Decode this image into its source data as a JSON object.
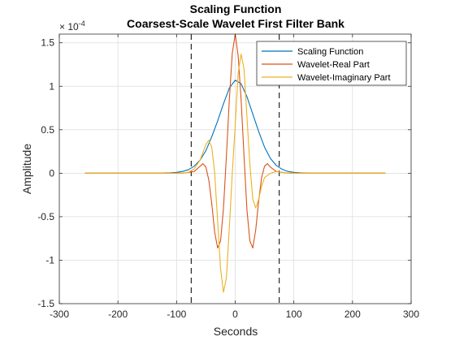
{
  "chart_data": {
    "type": "line",
    "title_lines": [
      "Scaling Function",
      "Coarsest-Scale Wavelet First Filter Bank"
    ],
    "xlabel": "Seconds",
    "ylabel": "Amplitude",
    "xlim": [
      -300,
      300
    ],
    "ylim": [
      -1.5,
      1.6
    ],
    "y_multiplier": "× 10",
    "y_exponent": "-4",
    "x_ticks": [
      -300,
      -200,
      -100,
      0,
      100,
      200,
      300
    ],
    "y_ticks": [
      -1.5,
      -1,
      -0.5,
      0,
      0.5,
      1,
      1.5
    ],
    "x_tick_labels": [
      "-300",
      "-200",
      "-100",
      "0",
      "100",
      "200",
      "300"
    ],
    "y_tick_labels": [
      "-1.5",
      "-1",
      "-0.5",
      "0",
      "0.5",
      "1",
      "1.5"
    ],
    "grid": true,
    "legend_position": "top-right",
    "vlines": [
      -75,
      75
    ],
    "series": [
      {
        "name": "Scaling Function",
        "color": "#0072BD",
        "x": [
          -256,
          -130,
          -110,
          -100,
          -90,
          -80,
          -70,
          -60,
          -50,
          -40,
          -30,
          -20,
          -10,
          0,
          10,
          20,
          30,
          40,
          50,
          60,
          70,
          80,
          90,
          100,
          110,
          130,
          256
        ],
        "y": [
          0,
          0,
          0.005,
          0.01,
          0.02,
          0.04,
          0.08,
          0.15,
          0.26,
          0.42,
          0.6,
          0.8,
          0.98,
          1.07,
          1.03,
          0.88,
          0.68,
          0.48,
          0.3,
          0.17,
          0.09,
          0.045,
          0.02,
          0.01,
          0.005,
          0,
          0
        ]
      },
      {
        "name": "Wavelet-Real Part",
        "color": "#D95319",
        "x": [
          -256,
          -90,
          -80,
          -70,
          -60,
          -55,
          -50,
          -45,
          -40,
          -35,
          -30,
          -25,
          -20,
          -15,
          -10,
          -5,
          0,
          5,
          10,
          15,
          20,
          25,
          30,
          35,
          40,
          45,
          50,
          55,
          60,
          70,
          80,
          90,
          256
        ],
        "y": [
          0,
          0,
          0.01,
          0.02,
          0.08,
          0.11,
          0.07,
          -0.08,
          -0.35,
          -0.68,
          -0.86,
          -0.78,
          -0.4,
          0.2,
          0.85,
          1.38,
          1.6,
          1.35,
          0.85,
          0.2,
          -0.42,
          -0.78,
          -0.86,
          -0.65,
          -0.32,
          -0.05,
          0.08,
          0.11,
          0.07,
          0.02,
          0.01,
          0,
          0
        ]
      },
      {
        "name": "Wavelet-Imaginary Part",
        "color": "#EDB120",
        "x": [
          -256,
          -90,
          -80,
          -70,
          -60,
          -50,
          -45,
          -40,
          -35,
          -30,
          -25,
          -20,
          -15,
          -10,
          -5,
          0,
          5,
          10,
          15,
          20,
          25,
          30,
          35,
          40,
          45,
          50,
          60,
          70,
          80,
          90,
          256
        ],
        "y": [
          0,
          0,
          0.01,
          0.05,
          0.15,
          0.33,
          0.38,
          0.3,
          0.0,
          -0.55,
          -1.1,
          -1.37,
          -1.2,
          -0.62,
          0.0,
          0.55,
          1.15,
          1.37,
          1.2,
          0.65,
          0.1,
          -0.3,
          -0.4,
          -0.3,
          -0.15,
          -0.05,
          0.0,
          0.02,
          0.01,
          0,
          0
        ]
      }
    ]
  }
}
